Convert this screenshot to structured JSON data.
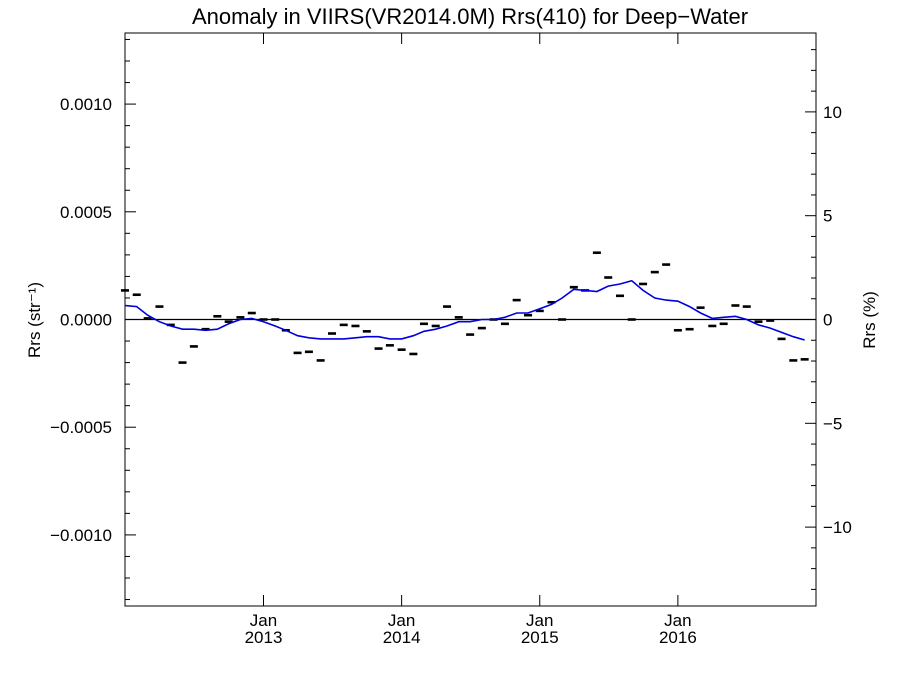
{
  "chart_data": {
    "type": "line",
    "title": "Anomaly in VIIRS(VR2014.0M) Rrs(410) for Deep−Water",
    "ylabel": "Rrs (str⁻¹)",
    "ylabel_right": "Rrs (%)",
    "xlabel": "",
    "xlim": [
      "2012-01-01",
      "2016-12-31"
    ],
    "ylim": [
      -0.00133,
      0.00133
    ],
    "ylim_right": [
      -13.8,
      13.8
    ],
    "grid": false,
    "x_ticks": [
      {
        "date": "2013-01-01",
        "label_top": "Jan",
        "label_bottom": "2013"
      },
      {
        "date": "2014-01-01",
        "label_top": "Jan",
        "label_bottom": "2014"
      },
      {
        "date": "2015-01-01",
        "label_top": "Jan",
        "label_bottom": "2015"
      },
      {
        "date": "2016-01-01",
        "label_top": "Jan",
        "label_bottom": "2016"
      }
    ],
    "y_ticks": [
      {
        "value": 0.001,
        "label": "0.0010"
      },
      {
        "value": 0.0005,
        "label": "0.0005"
      },
      {
        "value": 0.0,
        "label": "0.0000"
      },
      {
        "value": -0.0005,
        "label": "−0.0005"
      },
      {
        "value": -0.001,
        "label": "−0.0010"
      }
    ],
    "y_ticks_right": [
      {
        "value": 10,
        "label": "10"
      },
      {
        "value": 5,
        "label": "5"
      },
      {
        "value": 0,
        "label": "0"
      },
      {
        "value": -5,
        "label": "−5"
      },
      {
        "value": -10,
        "label": "−10"
      }
    ],
    "reference_line": 0.0,
    "series": [
      {
        "kind": "markers",
        "color": "#000000",
        "points": [
          [
            "2012-01-01",
            0.000135
          ],
          [
            "2012-02-01",
            0.000115
          ],
          [
            "2012-03-01",
            5e-06
          ],
          [
            "2012-04-01",
            6e-05
          ],
          [
            "2012-05-01",
            -2.5e-05
          ],
          [
            "2012-06-01",
            -0.0002
          ],
          [
            "2012-07-01",
            -0.000125
          ],
          [
            "2012-08-01",
            -4.5e-05
          ],
          [
            "2012-09-01",
            1.5e-05
          ],
          [
            "2012-10-01",
            -1e-05
          ],
          [
            "2012-11-01",
            1e-05
          ],
          [
            "2012-12-01",
            3e-05
          ],
          [
            "2013-01-01",
            0.0
          ],
          [
            "2013-02-01",
            0.0
          ],
          [
            "2013-03-01",
            -5e-05
          ],
          [
            "2013-04-01",
            -0.000155
          ],
          [
            "2013-05-01",
            -0.00015
          ],
          [
            "2013-06-01",
            -0.00019
          ],
          [
            "2013-07-01",
            -6.5e-05
          ],
          [
            "2013-08-01",
            -2.5e-05
          ],
          [
            "2013-09-01",
            -3e-05
          ],
          [
            "2013-10-01",
            -5.5e-05
          ],
          [
            "2013-11-01",
            -0.000135
          ],
          [
            "2013-12-01",
            -0.00012
          ],
          [
            "2014-01-01",
            -0.00014
          ],
          [
            "2014-02-01",
            -0.00016
          ],
          [
            "2014-03-01",
            -2e-05
          ],
          [
            "2014-04-01",
            -3e-05
          ],
          [
            "2014-05-01",
            6e-05
          ],
          [
            "2014-06-01",
            1e-05
          ],
          [
            "2014-07-01",
            -7e-05
          ],
          [
            "2014-08-01",
            -4e-05
          ],
          [
            "2014-09-01",
            0.0
          ],
          [
            "2014-10-01",
            -2e-05
          ],
          [
            "2014-11-01",
            9e-05
          ],
          [
            "2014-12-01",
            2e-05
          ],
          [
            "2015-01-01",
            4e-05
          ],
          [
            "2015-02-01",
            8e-05
          ],
          [
            "2015-03-01",
            0.0
          ],
          [
            "2015-04-01",
            0.00015
          ],
          [
            "2015-05-01",
            0.000135
          ],
          [
            "2015-06-01",
            0.00031
          ],
          [
            "2015-07-01",
            0.000195
          ],
          [
            "2015-08-01",
            0.00011
          ],
          [
            "2015-09-01",
            0.0
          ],
          [
            "2015-10-01",
            0.000165
          ],
          [
            "2015-11-01",
            0.00022
          ],
          [
            "2015-12-01",
            0.000255
          ],
          [
            "2016-01-01",
            -5e-05
          ],
          [
            "2016-02-01",
            -4.5e-05
          ],
          [
            "2016-03-01",
            5.5e-05
          ],
          [
            "2016-04-01",
            -3e-05
          ],
          [
            "2016-05-01",
            -2e-05
          ],
          [
            "2016-06-01",
            6.5e-05
          ],
          [
            "2016-07-01",
            6e-05
          ],
          [
            "2016-08-01",
            -1e-05
          ],
          [
            "2016-09-01",
            -5e-06
          ],
          [
            "2016-10-01",
            -9e-05
          ],
          [
            "2016-11-01",
            -0.00019
          ],
          [
            "2016-12-01",
            -0.000185
          ]
        ]
      },
      {
        "kind": "line",
        "color": "#0000dd",
        "points": [
          [
            "2012-01-01",
            6.5e-05
          ],
          [
            "2012-02-01",
            6e-05
          ],
          [
            "2012-03-01",
            2e-05
          ],
          [
            "2012-04-01",
            -1e-05
          ],
          [
            "2012-05-01",
            -3e-05
          ],
          [
            "2012-06-01",
            -4.5e-05
          ],
          [
            "2012-07-01",
            -4.5e-05
          ],
          [
            "2012-08-01",
            -5e-05
          ],
          [
            "2012-09-01",
            -4.5e-05
          ],
          [
            "2012-10-01",
            -2e-05
          ],
          [
            "2012-11-01",
            0.0
          ],
          [
            "2012-12-01",
            5e-06
          ],
          [
            "2013-01-01",
            -1e-05
          ],
          [
            "2013-02-01",
            -3e-05
          ],
          [
            "2013-03-01",
            -5e-05
          ],
          [
            "2013-04-01",
            -7.5e-05
          ],
          [
            "2013-05-01",
            -8.5e-05
          ],
          [
            "2013-06-01",
            -9e-05
          ],
          [
            "2013-07-01",
            -9e-05
          ],
          [
            "2013-08-01",
            -9e-05
          ],
          [
            "2013-09-01",
            -8.5e-05
          ],
          [
            "2013-10-01",
            -8e-05
          ],
          [
            "2013-11-01",
            -8e-05
          ],
          [
            "2013-12-01",
            -9e-05
          ],
          [
            "2014-01-01",
            -9e-05
          ],
          [
            "2014-02-01",
            -7.5e-05
          ],
          [
            "2014-03-01",
            -5.5e-05
          ],
          [
            "2014-04-01",
            -4.5e-05
          ],
          [
            "2014-05-01",
            -3e-05
          ],
          [
            "2014-06-01",
            -1e-05
          ],
          [
            "2014-07-01",
            -1e-05
          ],
          [
            "2014-08-01",
            0.0
          ],
          [
            "2014-09-01",
            0.0
          ],
          [
            "2014-10-01",
            1e-05
          ],
          [
            "2014-11-01",
            3e-05
          ],
          [
            "2014-12-01",
            3e-05
          ],
          [
            "2015-01-01",
            5e-05
          ],
          [
            "2015-02-01",
            7e-05
          ],
          [
            "2015-03-01",
            0.0001
          ],
          [
            "2015-04-01",
            0.00014
          ],
          [
            "2015-05-01",
            0.000135
          ],
          [
            "2015-06-01",
            0.00013
          ],
          [
            "2015-07-01",
            0.000155
          ],
          [
            "2015-08-01",
            0.000165
          ],
          [
            "2015-09-01",
            0.00018
          ],
          [
            "2015-10-01",
            0.000135
          ],
          [
            "2015-11-01",
            0.0001
          ],
          [
            "2015-12-01",
            9e-05
          ],
          [
            "2016-01-01",
            8.5e-05
          ],
          [
            "2016-02-01",
            6e-05
          ],
          [
            "2016-03-01",
            3e-05
          ],
          [
            "2016-04-01",
            5e-06
          ],
          [
            "2016-05-01",
            1e-05
          ],
          [
            "2016-06-01",
            1.5e-05
          ],
          [
            "2016-07-01",
            0.0
          ],
          [
            "2016-08-01",
            -2.5e-05
          ],
          [
            "2016-09-01",
            -4e-05
          ],
          [
            "2016-10-01",
            -6e-05
          ],
          [
            "2016-11-01",
            -8e-05
          ],
          [
            "2016-12-01",
            -9.5e-05
          ]
        ]
      }
    ]
  }
}
